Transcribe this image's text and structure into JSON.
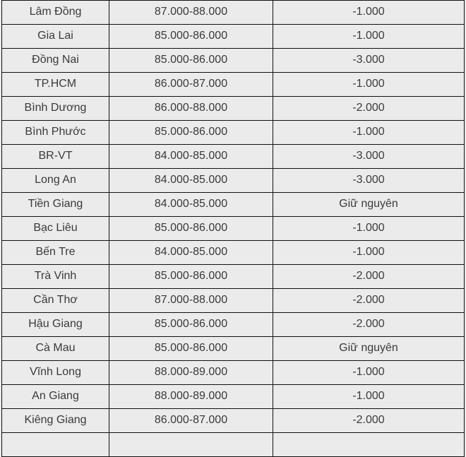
{
  "table": {
    "rows": [
      [
        "Lâm Đồng",
        "87.000-88.000",
        "-1.000"
      ],
      [
        "Gia Lai",
        "85.000-86.000",
        "-1.000"
      ],
      [
        "Đồng Nai",
        "85.000-86.000",
        "-3.000"
      ],
      [
        "TP.HCM",
        "86.000-87.000",
        "-1.000"
      ],
      [
        "Bình Dương",
        "86.000-88.000",
        "-2.000"
      ],
      [
        "Bình Phước",
        "85.000-86.000",
        "-1.000"
      ],
      [
        "BR-VT",
        "84.000-85.000",
        "-3.000"
      ],
      [
        "Long An",
        "84.000-85.000",
        "-3.000"
      ],
      [
        "Tiền Giang",
        "84.000-85.000",
        "Giữ nguyên"
      ],
      [
        "Bạc Liêu",
        "85.000-86.000",
        "-1.000"
      ],
      [
        "Bến Tre",
        "84.000-85.000",
        "-1.000"
      ],
      [
        "Trà Vinh",
        "85.000-86.000",
        "-2.000"
      ],
      [
        "Cần Thơ",
        "87.000-88.000",
        "-2.000"
      ],
      [
        "Hậu Giang",
        "85.000-86.000",
        "-2.000"
      ],
      [
        "Cà Mau",
        "85.000-86.000",
        "Giữ nguyên"
      ],
      [
        "Vĩnh Long",
        "88.000-89.000",
        "-1.000"
      ],
      [
        "An Giang",
        "88.000-89.000",
        "-1.000"
      ],
      [
        "Kiêng Giang",
        "86.000-87.000",
        "-2.000"
      ],
      [
        "",
        "",
        ""
      ]
    ]
  }
}
